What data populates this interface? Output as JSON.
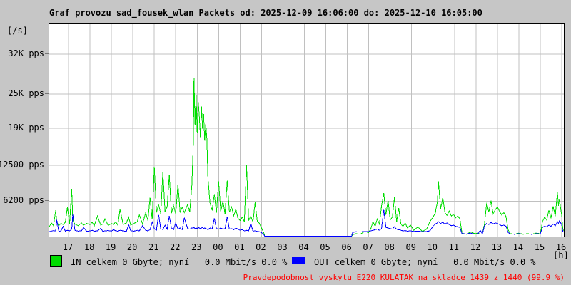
{
  "title": "Graf provozu sad_fousek_wlan Packets od: 2025-12-09 16:06:00 do: 2025-12-10 16:05:00",
  "colors": {
    "background": "#c6c6c6",
    "plot_background": "#ffffff",
    "grid": "#c0c0c0",
    "in_series": "#00dd00",
    "out_series": "#0000ff",
    "note_text": "#ff0000",
    "frame": "#000000"
  },
  "legend": {
    "in_label": "IN celkem 0 Gbyte; nyní   0.0 Mbit/s 0.0 %",
    "out_label": "OUT celkem 0 Gbyte; nyní   0.0 Mbit/s 0.0 %"
  },
  "note": "Pravdepodobnost vyskytu E220 KULATAK na skladce 1439 z 1440 (99.9 %)",
  "chart_data": {
    "type": "line",
    "title": "Graf provozu sad_fousek_wlan Packets od: 2025-12-09 16:06:00 do: 2025-12-10 16:05:00",
    "ylabel": "[/s]",
    "xunit": "[h]",
    "grid": true,
    "legend_position": "bottom",
    "x_total_hours": 24,
    "first_tick_hour": 0.9,
    "x_hour_labels": [
      "17",
      "18",
      "19",
      "20",
      "21",
      "22",
      "23",
      "00",
      "01",
      "02",
      "03",
      "04",
      "05",
      "06",
      "07",
      "08",
      "09",
      "10",
      "11",
      "12",
      "13",
      "14",
      "15",
      "16"
    ],
    "y_ticks": [
      {
        "value": 6200,
        "label": "6200 pps"
      },
      {
        "value": 12500,
        "label": "12500 pps"
      },
      {
        "value": 19000,
        "label": "19K pps"
      },
      {
        "value": 25000,
        "label": "25K pps"
      },
      {
        "value": 32000,
        "label": "32K pps"
      }
    ],
    "ylim": [
      0,
      37400
    ],
    "series": [
      {
        "name": "IN",
        "unit": "pps",
        "color": "#00dd00"
      },
      {
        "name": "OUT",
        "unit": "pps",
        "color": "#0000ff"
      }
    ],
    "samples_format": "[hours_since_16:06, in_pps, out_pps]",
    "samples": [
      [
        0,
        1700,
        850
      ],
      [
        0.1,
        2400,
        950
      ],
      [
        0.2,
        1900,
        1050
      ],
      [
        0.3,
        4600,
        1000
      ],
      [
        0.35,
        2600,
        2900
      ],
      [
        0.45,
        1900,
        900
      ],
      [
        0.55,
        2300,
        1000
      ],
      [
        0.65,
        2100,
        1800
      ],
      [
        0.75,
        2500,
        950
      ],
      [
        0.85,
        5200,
        1100
      ],
      [
        0.95,
        2200,
        1000
      ],
      [
        1.05,
        8400,
        1300
      ],
      [
        1.1,
        2700,
        3900
      ],
      [
        1.2,
        2200,
        1100
      ],
      [
        1.35,
        1900,
        950
      ],
      [
        1.5,
        2400,
        1000
      ],
      [
        1.6,
        2000,
        1600
      ],
      [
        1.75,
        2300,
        900
      ],
      [
        1.9,
        2100,
        1000
      ],
      [
        2.0,
        2500,
        1100
      ],
      [
        2.1,
        1900,
        950
      ],
      [
        2.25,
        3600,
        1000
      ],
      [
        2.4,
        2000,
        1450
      ],
      [
        2.5,
        2200,
        900
      ],
      [
        2.6,
        3100,
        1000
      ],
      [
        2.75,
        1950,
        1050
      ],
      [
        2.9,
        2300,
        950
      ],
      [
        3.0,
        2100,
        1200
      ],
      [
        3.1,
        2600,
        1000
      ],
      [
        3.2,
        2000,
        950
      ],
      [
        3.3,
        4800,
        1100
      ],
      [
        3.45,
        2100,
        1000
      ],
      [
        3.6,
        2400,
        900
      ],
      [
        3.7,
        3400,
        2100
      ],
      [
        3.8,
        2000,
        1000
      ],
      [
        3.95,
        2300,
        950
      ],
      [
        4.1,
        2600,
        1100
      ],
      [
        4.2,
        3800,
        1000
      ],
      [
        4.35,
        2200,
        1900
      ],
      [
        4.5,
        4200,
        1100
      ],
      [
        4.6,
        2800,
        1000
      ],
      [
        4.7,
        6800,
        1200
      ],
      [
        4.8,
        3000,
        2500
      ],
      [
        4.9,
        12200,
        1400
      ],
      [
        5.0,
        4200,
        1100
      ],
      [
        5.1,
        5600,
        3800
      ],
      [
        5.2,
        4000,
        1400
      ],
      [
        5.3,
        11400,
        1200
      ],
      [
        5.4,
        4400,
        2000
      ],
      [
        5.5,
        5200,
        1300
      ],
      [
        5.6,
        10900,
        3600
      ],
      [
        5.7,
        4100,
        1500
      ],
      [
        5.8,
        5400,
        1200
      ],
      [
        5.9,
        4000,
        2400
      ],
      [
        6.0,
        9200,
        1300
      ],
      [
        6.1,
        4300,
        1500
      ],
      [
        6.2,
        5100,
        1200
      ],
      [
        6.3,
        4200,
        3300
      ],
      [
        6.45,
        5600,
        1400
      ],
      [
        6.55,
        4300,
        1300
      ],
      [
        6.65,
        9000,
        1500
      ],
      [
        6.72,
        16500,
        1500
      ],
      [
        6.75,
        27800,
        1600
      ],
      [
        6.8,
        19500,
        1400
      ],
      [
        6.85,
        24800,
        1500
      ],
      [
        6.9,
        18200,
        1400
      ],
      [
        6.95,
        23600,
        1600
      ],
      [
        7.0,
        21000,
        1500
      ],
      [
        7.05,
        17400,
        1400
      ],
      [
        7.1,
        22800,
        1500
      ],
      [
        7.15,
        18900,
        1600
      ],
      [
        7.2,
        21500,
        1400
      ],
      [
        7.25,
        16800,
        1500
      ],
      [
        7.3,
        19800,
        1400
      ],
      [
        7.35,
        17200,
        1300
      ],
      [
        7.4,
        10400,
        1200
      ],
      [
        7.5,
        5800,
        1500
      ],
      [
        7.6,
        4600,
        1300
      ],
      [
        7.7,
        7400,
        3200
      ],
      [
        7.8,
        4200,
        1400
      ],
      [
        7.9,
        9700,
        1300
      ],
      [
        8.0,
        4400,
        1500
      ],
      [
        8.1,
        6200,
        1300
      ],
      [
        8.2,
        4000,
        1400
      ],
      [
        8.3,
        9800,
        3400
      ],
      [
        8.4,
        4300,
        1300
      ],
      [
        8.5,
        5200,
        1400
      ],
      [
        8.6,
        3600,
        1200
      ],
      [
        8.7,
        4800,
        1500
      ],
      [
        8.8,
        3200,
        1300
      ],
      [
        8.9,
        2800,
        1100
      ],
      [
        9.0,
        3400,
        1200
      ],
      [
        9.1,
        2600,
        1000
      ],
      [
        9.2,
        12600,
        1100
      ],
      [
        9.3,
        2800,
        1000
      ],
      [
        9.4,
        3600,
        2300
      ],
      [
        9.5,
        2500,
        950
      ],
      [
        9.6,
        6000,
        1000
      ],
      [
        9.7,
        2700,
        900
      ],
      [
        9.8,
        2300,
        850
      ],
      [
        9.9,
        1500,
        700
      ],
      [
        10.0,
        700,
        400
      ],
      [
        10.05,
        0,
        0
      ],
      [
        14.1,
        0,
        0
      ],
      [
        14.15,
        300,
        700
      ],
      [
        14.3,
        500,
        850
      ],
      [
        14.5,
        400,
        800
      ],
      [
        14.7,
        900,
        900
      ],
      [
        14.9,
        700,
        850
      ],
      [
        15.0,
        1400,
        1000
      ],
      [
        15.1,
        2600,
        1100
      ],
      [
        15.2,
        1800,
        1200
      ],
      [
        15.3,
        3100,
        1300
      ],
      [
        15.4,
        2200,
        1100
      ],
      [
        15.5,
        5400,
        1400
      ],
      [
        15.6,
        7600,
        4700
      ],
      [
        15.7,
        3800,
        1600
      ],
      [
        15.8,
        6300,
        1500
      ],
      [
        15.9,
        2900,
        1400
      ],
      [
        16.0,
        3400,
        1300
      ],
      [
        16.1,
        6900,
        1700
      ],
      [
        16.2,
        2600,
        1300
      ],
      [
        16.3,
        5000,
        1200
      ],
      [
        16.4,
        2200,
        1100
      ],
      [
        16.5,
        1800,
        1000
      ],
      [
        16.6,
        2400,
        1050
      ],
      [
        16.7,
        1500,
        950
      ],
      [
        16.85,
        2000,
        1000
      ],
      [
        17.0,
        1100,
        900
      ],
      [
        17.2,
        1700,
        950
      ],
      [
        17.4,
        900,
        850
      ],
      [
        17.6,
        1300,
        900
      ],
      [
        17.75,
        2600,
        1000
      ],
      [
        17.9,
        3400,
        1800
      ],
      [
        18.0,
        4100,
        2200
      ],
      [
        18.1,
        6100,
        2400
      ],
      [
        18.15,
        9700,
        2600
      ],
      [
        18.25,
        4800,
        2300
      ],
      [
        18.35,
        6800,
        2500
      ],
      [
        18.45,
        4200,
        2200
      ],
      [
        18.55,
        3700,
        2400
      ],
      [
        18.65,
        4500,
        2100
      ],
      [
        18.75,
        3600,
        1900
      ],
      [
        18.85,
        3900,
        2000
      ],
      [
        18.95,
        3300,
        1800
      ],
      [
        19.05,
        3600,
        1700
      ],
      [
        19.15,
        3100,
        1600
      ],
      [
        19.25,
        600,
        500
      ],
      [
        19.45,
        400,
        450
      ],
      [
        19.65,
        800,
        600
      ],
      [
        19.85,
        500,
        400
      ],
      [
        20.0,
        600,
        500
      ],
      [
        20.1,
        400,
        1100
      ],
      [
        20.2,
        500,
        450
      ],
      [
        20.3,
        2200,
        1900
      ],
      [
        20.4,
        5900,
        2300
      ],
      [
        20.5,
        4300,
        2100
      ],
      [
        20.6,
        6300,
        2500
      ],
      [
        20.7,
        4000,
        2200
      ],
      [
        20.8,
        4700,
        2400
      ],
      [
        20.9,
        5200,
        2300
      ],
      [
        21.0,
        4400,
        2100
      ],
      [
        21.1,
        3800,
        1900
      ],
      [
        21.2,
        4200,
        2000
      ],
      [
        21.3,
        3500,
        1800
      ],
      [
        21.4,
        1200,
        700
      ],
      [
        21.5,
        500,
        450
      ],
      [
        21.7,
        400,
        400
      ],
      [
        21.9,
        600,
        500
      ],
      [
        22.1,
        400,
        420
      ],
      [
        22.3,
        500,
        450
      ],
      [
        22.5,
        400,
        400
      ],
      [
        22.7,
        600,
        500
      ],
      [
        22.9,
        500,
        450
      ],
      [
        23.0,
        2600,
        1600
      ],
      [
        23.1,
        3400,
        1800
      ],
      [
        23.2,
        2900,
        1700
      ],
      [
        23.3,
        4600,
        2000
      ],
      [
        23.4,
        3200,
        1800
      ],
      [
        23.5,
        5300,
        2200
      ],
      [
        23.6,
        3600,
        1900
      ],
      [
        23.7,
        7800,
        2600
      ],
      [
        23.75,
        5400,
        2300
      ],
      [
        23.8,
        6600,
        2800
      ],
      [
        23.85,
        4900,
        2400
      ],
      [
        23.9,
        3800,
        2100
      ],
      [
        23.95,
        1400,
        900
      ],
      [
        24.0,
        1000,
        800
      ]
    ]
  }
}
